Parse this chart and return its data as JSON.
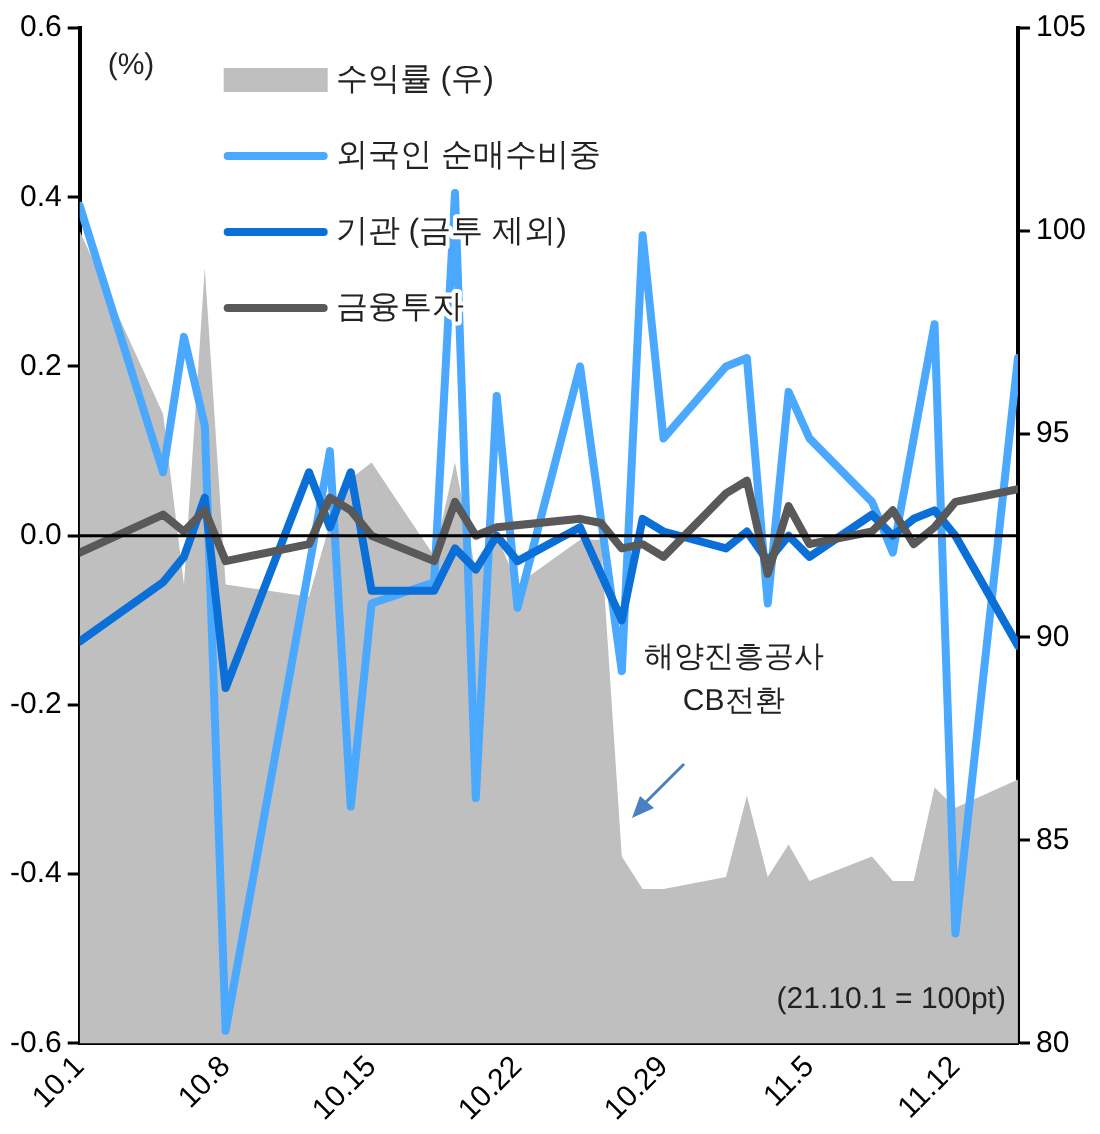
{
  "chart_data": {
    "type": "line",
    "ylabel": "(%)",
    "legend": "top left",
    "grid": false,
    "marker": "none",
    "xlim": [
      "--10-01",
      "--11-15"
    ],
    "xticks": [
      {
        "value": "--10-01",
        "label": "10.1"
      },
      {
        "value": "--10-08",
        "label": "10.8"
      },
      {
        "value": "--10-15",
        "label": "10.15"
      },
      {
        "value": "--10-22",
        "label": "10.22"
      },
      {
        "value": "--10-29",
        "label": "10.29"
      },
      {
        "value": "--11-05",
        "label": "11.5"
      },
      {
        "value": "--11-12",
        "label": "11.12"
      }
    ],
    "ylim": [
      -0.6,
      0.6
    ],
    "yticks": [
      -0.6,
      -0.4,
      -0.2,
      {
        "value": 0,
        "label": "0.0"
      },
      0.2,
      0.4,
      0.6
    ],
    "y2lim": [
      80,
      105
    ],
    "y2ticks": [
      80,
      85,
      90,
      95,
      100,
      105
    ],
    "ref_lines": [
      {
        "axis": "y",
        "value": 0,
        "color": "#000000"
      }
    ],
    "annotations": [
      "해양진흥공사\nCB전환",
      "(21.10.1 = 100pt)"
    ],
    "series": [
      {
        "name": "수익률 (우)",
        "type": "area",
        "axis": "y2",
        "color": "#bfbfbf",
        "x": [
          "--10-01",
          "--10-05",
          "--10-06",
          "--10-07",
          "--10-08",
          "--10-12",
          "--10-13",
          "--10-14",
          "--10-15",
          "--10-18",
          "--10-19",
          "--10-20",
          "--10-21",
          "--10-22",
          "--10-25",
          "--10-26",
          "--10-27",
          "--10-28",
          "--10-29",
          "--11-01",
          "--11-02",
          "--11-03",
          "--11-04",
          "--11-05",
          "--11-08",
          "--11-09",
          "--11-10",
          "--11-11",
          "--11-12",
          "--11-15"
        ],
        "values": [
          100,
          95.5,
          91.3,
          99.1,
          91.3,
          91,
          92.8,
          93.9,
          94.3,
          92,
          94.3,
          91.6,
          92.5,
          91.3,
          92.4,
          92.4,
          84.6,
          83.8,
          83.8,
          84.1,
          86.1,
          84.1,
          84.9,
          84,
          84.6,
          84,
          84,
          86.3,
          85.8,
          86.5
        ]
      },
      {
        "name": "외국인 순매수비중",
        "color": "#4aa8ff",
        "x": [
          "--10-01",
          "--10-05",
          "--10-06",
          "--10-07",
          "--10-08",
          "--10-13",
          "--10-14",
          "--10-15",
          "--10-18",
          "--10-19",
          "--10-20",
          "--10-21",
          "--10-22",
          "--10-25",
          "--10-27",
          "--10-28",
          "--10-29",
          "--11-01",
          "--11-02",
          "--11-03",
          "--11-04",
          "--11-05",
          "--11-08",
          "--11-09",
          "--11-11",
          "--11-12",
          "--11-15"
        ],
        "values": [
          0.39,
          0.075,
          0.235,
          0.13,
          -0.585,
          0.1,
          -0.32,
          -0.08,
          -0.055,
          0.405,
          -0.31,
          0.165,
          -0.085,
          0.2,
          -0.16,
          0.355,
          0.115,
          0.2,
          0.21,
          -0.08,
          0.17,
          0.115,
          0.04,
          -0.02,
          0.25,
          -0.47,
          0.21
        ]
      },
      {
        "name": "기관 (금투 제외)",
        "color": "#0a6fd6",
        "x": [
          "--10-01",
          "--10-05",
          "--10-06",
          "--10-07",
          "--10-08",
          "--10-12",
          "--10-13",
          "--10-14",
          "--10-15",
          "--10-18",
          "--10-19",
          "--10-20",
          "--10-21",
          "--10-22",
          "--10-25",
          "--10-27",
          "--10-28",
          "--10-29",
          "--11-01",
          "--11-02",
          "--11-03",
          "--11-04",
          "--11-05",
          "--11-08",
          "--11-09",
          "--11-10",
          "--11-11",
          "--11-12",
          "--11-15"
        ],
        "values": [
          -0.125,
          -0.055,
          -0.025,
          0.045,
          -0.18,
          0.075,
          0.01,
          0.075,
          -0.065,
          -0.065,
          -0.015,
          -0.04,
          0,
          -0.03,
          0.01,
          -0.1,
          0.02,
          0.005,
          -0.015,
          0.005,
          -0.03,
          0,
          -0.025,
          0.025,
          0,
          0.02,
          0.03,
          0,
          -0.13
        ]
      },
      {
        "name": "금융투자",
        "color": "#595959",
        "x": [
          "--10-01",
          "--10-05",
          "--10-06",
          "--10-07",
          "--10-08",
          "--10-12",
          "--10-13",
          "--10-14",
          "--10-15",
          "--10-18",
          "--10-19",
          "--10-20",
          "--10-21",
          "--10-25",
          "--10-26",
          "--10-27",
          "--10-28",
          "--10-29",
          "--11-01",
          "--11-02",
          "--11-03",
          "--11-04",
          "--11-05",
          "--11-08",
          "--11-09",
          "--11-10",
          "--11-11",
          "--11-12",
          "--11-15"
        ],
        "values": [
          -0.02,
          0.025,
          0.005,
          0.03,
          -0.03,
          -0.01,
          0.045,
          0.03,
          0,
          -0.03,
          0.04,
          0,
          0.01,
          0.02,
          0.015,
          -0.015,
          -0.01,
          -0.025,
          0.05,
          0.065,
          -0.045,
          0.035,
          -0.01,
          0.005,
          0.03,
          -0.01,
          0.01,
          0.04,
          0.055
        ]
      }
    ]
  }
}
